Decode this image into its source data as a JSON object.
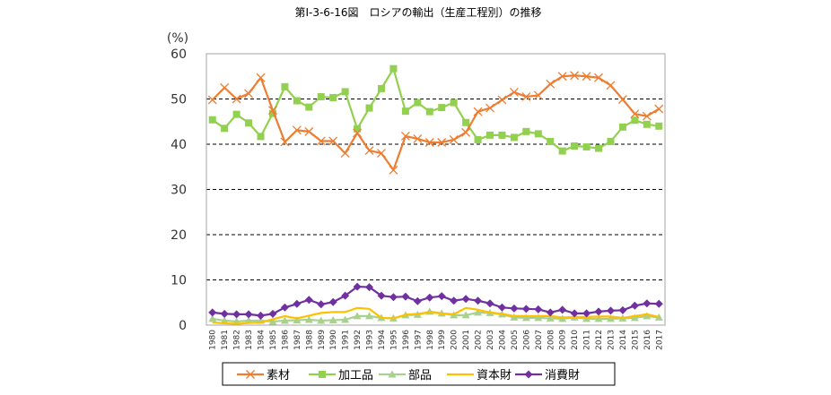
{
  "chart_data": {
    "type": "line",
    "title": "第Ⅰ-3-6-16図　ロシアの輸出（生産工程別）の推移",
    "ylabel": "(%)",
    "xlabel": "",
    "ylim": [
      0,
      60
    ],
    "yticks": [
      "0",
      "10",
      "20",
      "30",
      "40",
      "50",
      "60"
    ],
    "grid": "horizontal-dashed",
    "legend_position": "bottom",
    "categories": [
      "1980",
      "1981",
      "1982",
      "1983",
      "1984",
      "1985",
      "1986",
      "1987",
      "1988",
      "1989",
      "1990",
      "1991",
      "1992",
      "1993",
      "1994",
      "1995",
      "1996",
      "1997",
      "1998",
      "1999",
      "2000",
      "2001",
      "2002",
      "2003",
      "2004",
      "2005",
      "2006",
      "2007",
      "2008",
      "2009",
      "2010",
      "2011",
      "2012",
      "2013",
      "2014",
      "2015",
      "2016",
      "2017"
    ],
    "series": [
      {
        "name": "素材",
        "color": "#ED7D31",
        "marker": "x",
        "values": [
          49.8,
          52.5,
          50.0,
          51.2,
          54.7,
          47.5,
          40.5,
          43.1,
          42.8,
          40.7,
          40.7,
          38.0,
          42.5,
          38.6,
          38.0,
          34.3,
          41.8,
          41.2,
          40.4,
          40.4,
          41.0,
          42.6,
          47.2,
          48.0,
          49.8,
          51.5,
          50.5,
          50.8,
          53.3,
          55.0,
          55.2,
          55.0,
          54.7,
          53.0,
          49.9,
          46.7,
          46.2,
          47.8
        ]
      },
      {
        "name": "加工品",
        "color": "#92D050",
        "marker": "square",
        "values": [
          45.4,
          43.5,
          46.6,
          44.7,
          41.7,
          46.8,
          52.7,
          49.6,
          48.2,
          50.5,
          50.3,
          51.6,
          43.4,
          48.0,
          52.3,
          56.7,
          47.3,
          49.2,
          47.2,
          48.1,
          49.2,
          44.8,
          41.0,
          42.0,
          42.0,
          41.5,
          42.8,
          42.3,
          40.6,
          38.5,
          39.6,
          39.4,
          39.1,
          40.6,
          43.8,
          45.3,
          44.4,
          44.0
        ]
      },
      {
        "name": "部品",
        "color": "#A9D18E",
        "marker": "triangle",
        "values": [
          1.4,
          1.0,
          0.8,
          1.0,
          1.0,
          0.8,
          1.0,
          1.1,
          1.2,
          1.0,
          1.1,
          1.2,
          2.0,
          2.0,
          1.6,
          1.5,
          2.2,
          2.3,
          3.0,
          2.6,
          2.2,
          2.2,
          2.8,
          2.7,
          2.4,
          1.7,
          1.6,
          1.6,
          1.5,
          1.4,
          1.7,
          1.4,
          1.4,
          1.4,
          1.5,
          1.6,
          2.0,
          1.7
        ]
      },
      {
        "name": "資本財",
        "color": "#FFC000",
        "marker": "none",
        "values": [
          0.6,
          0.4,
          0.3,
          0.5,
          0.6,
          1.3,
          2.0,
          1.5,
          2.1,
          2.7,
          2.9,
          2.9,
          3.8,
          3.6,
          1.6,
          1.5,
          2.3,
          2.5,
          2.8,
          2.6,
          2.4,
          3.8,
          3.4,
          2.8,
          2.5,
          2.0,
          2.0,
          2.0,
          2.0,
          1.7,
          1.8,
          1.8,
          1.9,
          1.9,
          1.6,
          2.0,
          2.4,
          1.8
        ]
      },
      {
        "name": "消費財",
        "color": "#7030A0",
        "marker": "diamond",
        "values": [
          2.8,
          2.5,
          2.4,
          2.4,
          2.1,
          2.5,
          3.9,
          4.7,
          5.6,
          4.6,
          5.1,
          6.5,
          8.5,
          8.4,
          6.5,
          6.2,
          6.3,
          5.3,
          6.1,
          6.4,
          5.4,
          5.8,
          5.4,
          4.8,
          3.9,
          3.7,
          3.6,
          3.5,
          2.8,
          3.4,
          2.6,
          2.6,
          3.0,
          3.2,
          3.3,
          4.3,
          4.8,
          4.7
        ]
      }
    ]
  }
}
